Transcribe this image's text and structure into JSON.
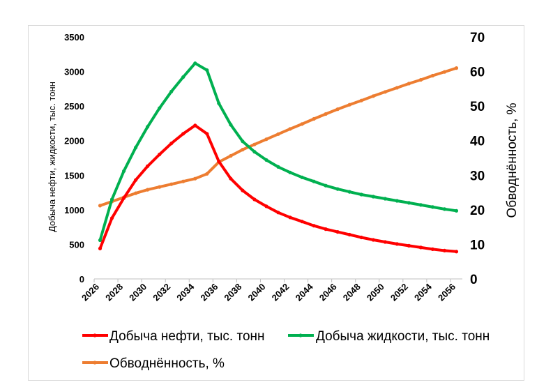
{
  "chart_data": {
    "type": "line",
    "x": [
      2026.5,
      2027.5,
      2028.5,
      2029.5,
      2030.5,
      2031.5,
      2032.5,
      2033.5,
      2034.5,
      2035.5,
      2036.5,
      2037.5,
      2038.5,
      2039.5,
      2040.5,
      2041.5,
      2042.5,
      2043.5,
      2044.5,
      2045.5,
      2046.5,
      2047.5,
      2048.5,
      2049.5,
      2050.5,
      2051.5,
      2052.5,
      2053.5,
      2054.5,
      2055.5,
      2056.5
    ],
    "x_ticks": [
      "2026",
      "2028",
      "2030",
      "2032",
      "2034",
      "2036",
      "2038",
      "2040",
      "2042",
      "2044",
      "2046",
      "2048",
      "2050",
      "2052",
      "2054",
      "2056"
    ],
    "xlim": [
      2026,
      2057
    ],
    "left_axis": {
      "label": "Добыча нефти, жидкости, тыс. тонн",
      "ylim": [
        0,
        3500
      ],
      "ticks": [
        "0",
        "500",
        "1000",
        "1500",
        "2000",
        "2500",
        "3000",
        "3500"
      ]
    },
    "right_axis": {
      "label": "Обводнённость, %",
      "ylim": [
        0,
        70
      ],
      "ticks": [
        "0",
        "10",
        "20",
        "30",
        "40",
        "50",
        "60",
        "70"
      ]
    },
    "grid": false,
    "legend_placement": "bottom",
    "series": [
      {
        "name": "Добыча нефти, тыс. тонн",
        "axis": "left",
        "color": "#ff0000",
        "values": [
          440,
          880,
          1170,
          1430,
          1630,
          1800,
          1960,
          2100,
          2220,
          2100,
          1700,
          1450,
          1280,
          1150,
          1050,
          960,
          890,
          830,
          770,
          720,
          680,
          640,
          600,
          565,
          535,
          505,
          480,
          455,
          430,
          410,
          395
        ]
      },
      {
        "name": "Добыча жидкости, тыс. тонн",
        "axis": "left",
        "color": "#00b050",
        "values": [
          560,
          1150,
          1560,
          1900,
          2200,
          2470,
          2710,
          2920,
          3120,
          3020,
          2540,
          2230,
          1990,
          1840,
          1720,
          1620,
          1540,
          1470,
          1410,
          1350,
          1300,
          1260,
          1220,
          1190,
          1160,
          1130,
          1100,
          1070,
          1040,
          1010,
          985
        ]
      },
      {
        "name": "Обводнённость, %",
        "axis": "right",
        "color": "#ed7d31",
        "values": [
          21.2,
          22.4,
          23.6,
          24.8,
          25.8,
          26.6,
          27.4,
          28.2,
          29.0,
          30.4,
          33.8,
          35.6,
          37.4,
          38.9,
          40.4,
          41.9,
          43.4,
          44.8,
          46.3,
          47.7,
          49.1,
          50.4,
          51.6,
          52.9,
          54.1,
          55.3,
          56.5,
          57.6,
          58.8,
          59.9,
          61.0
        ]
      }
    ]
  }
}
